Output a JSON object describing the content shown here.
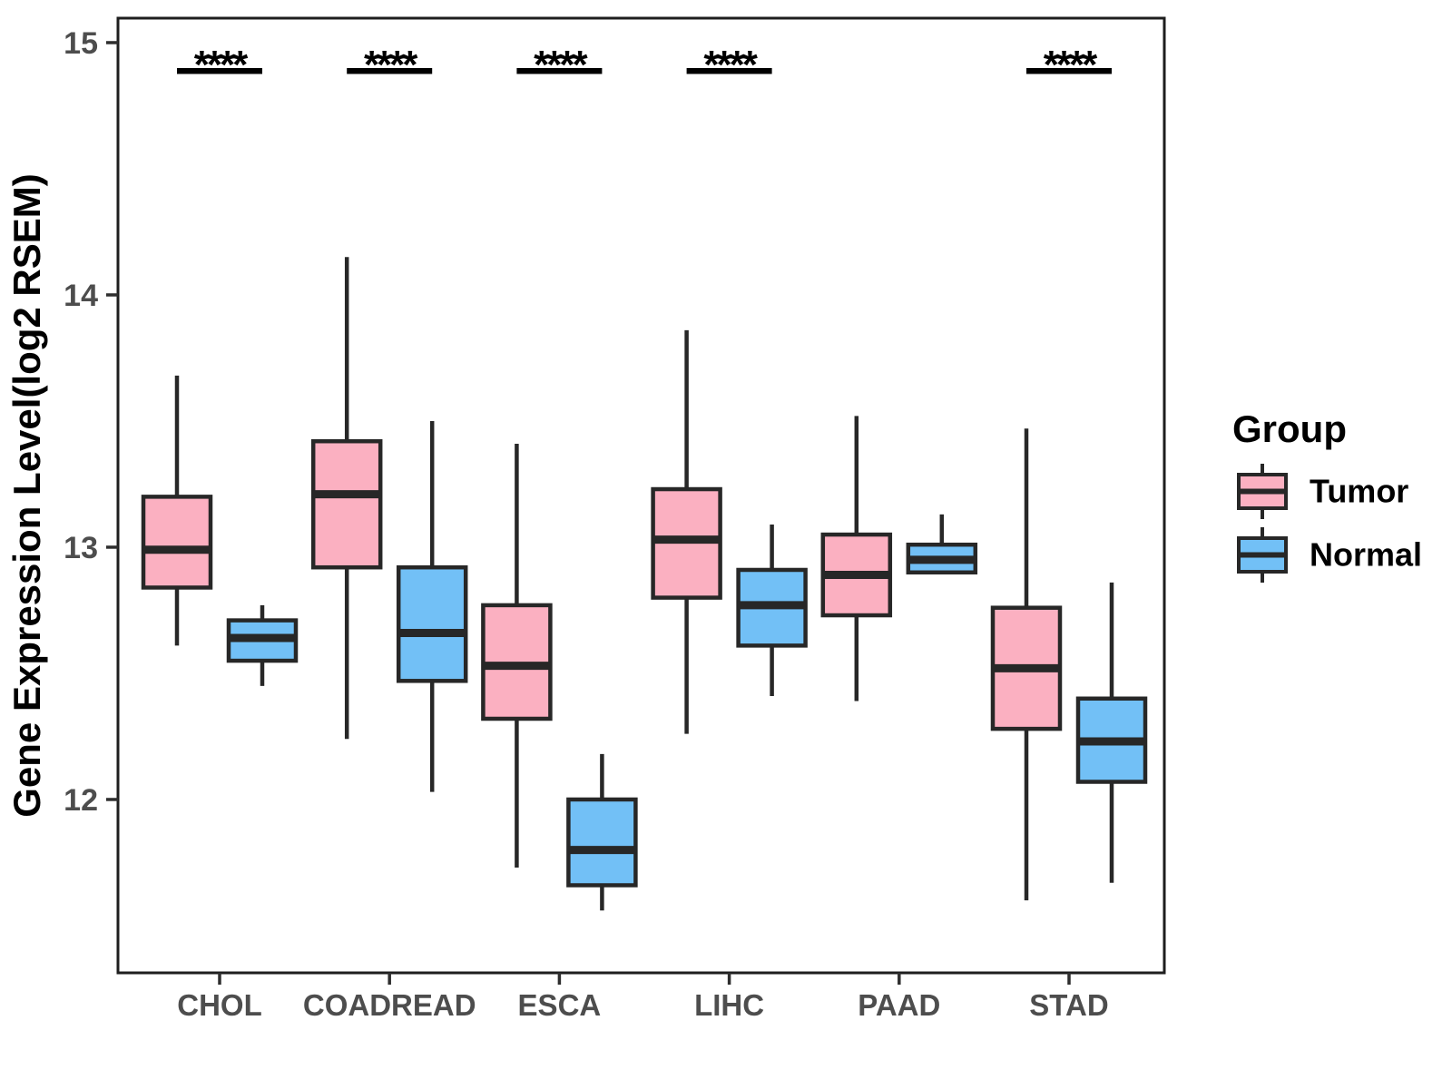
{
  "chart_data": {
    "type": "boxplot",
    "title": "",
    "ylabel": "Gene Expression Level(log2 RSEM)",
    "xlabel": "",
    "grid": false,
    "ylim": [
      11.31,
      15.1
    ],
    "yticks": [
      12,
      13,
      14,
      15
    ],
    "categories": [
      "CHOL",
      "COADREAD",
      "ESCA",
      "LIHC",
      "PAAD",
      "STAD"
    ],
    "legend": {
      "title": "Group",
      "position": "right",
      "entries": [
        {
          "name": "Tumor",
          "color": "#FBB0C1"
        },
        {
          "name": "Normal",
          "color": "#72C0F6"
        }
      ]
    },
    "significance": [
      {
        "category": "CHOL",
        "label": "****"
      },
      {
        "category": "COADREAD",
        "label": "****"
      },
      {
        "category": "ESCA",
        "label": "****"
      },
      {
        "category": "LIHC",
        "label": "****"
      },
      {
        "category": "STAD",
        "label": "****"
      }
    ],
    "series": [
      {
        "name": "Tumor",
        "color": "#FBB0C1",
        "boxes": [
          {
            "category": "CHOL",
            "low": 12.61,
            "q1": 12.84,
            "median": 12.99,
            "q3": 13.2,
            "high": 13.68
          },
          {
            "category": "COADREAD",
            "low": 12.24,
            "q1": 12.92,
            "median": 13.21,
            "q3": 13.42,
            "high": 14.15
          },
          {
            "category": "ESCA",
            "low": 11.73,
            "q1": 12.32,
            "median": 12.53,
            "q3": 12.77,
            "high": 13.41
          },
          {
            "category": "LIHC",
            "low": 12.26,
            "q1": 12.8,
            "median": 13.03,
            "q3": 13.23,
            "high": 13.86
          },
          {
            "category": "PAAD",
            "low": 12.39,
            "q1": 12.73,
            "median": 12.89,
            "q3": 13.05,
            "high": 13.52
          },
          {
            "category": "STAD",
            "low": 11.6,
            "q1": 12.28,
            "median": 12.52,
            "q3": 12.76,
            "high": 13.47
          }
        ]
      },
      {
        "name": "Normal",
        "color": "#72C0F6",
        "boxes": [
          {
            "category": "CHOL",
            "low": 12.45,
            "q1": 12.55,
            "median": 12.64,
            "q3": 12.71,
            "high": 12.77
          },
          {
            "category": "COADREAD",
            "low": 12.03,
            "q1": 12.47,
            "median": 12.66,
            "q3": 12.92,
            "high": 13.5
          },
          {
            "category": "ESCA",
            "low": 11.56,
            "q1": 11.66,
            "median": 11.8,
            "q3": 12.0,
            "high": 12.18
          },
          {
            "category": "LIHC",
            "low": 12.41,
            "q1": 12.61,
            "median": 12.77,
            "q3": 12.91,
            "high": 13.09
          },
          {
            "category": "PAAD",
            "low": 12.9,
            "q1": 12.9,
            "median": 12.95,
            "q3": 13.01,
            "high": 13.13
          },
          {
            "category": "STAD",
            "low": 11.67,
            "q1": 12.07,
            "median": 12.23,
            "q3": 12.4,
            "high": 12.86
          }
        ]
      }
    ],
    "colors": {
      "tumor_fill": "#FBB0C1",
      "normal_fill": "#72C0F6",
      "box_stroke": "#272727",
      "panel_border": "#1E1E1E",
      "axis_tick": "#2E2E2E",
      "axis_text": "#4D4D4D",
      "axis_title": "#000000",
      "significance": "#000000",
      "background": "#FFFFFF"
    }
  }
}
